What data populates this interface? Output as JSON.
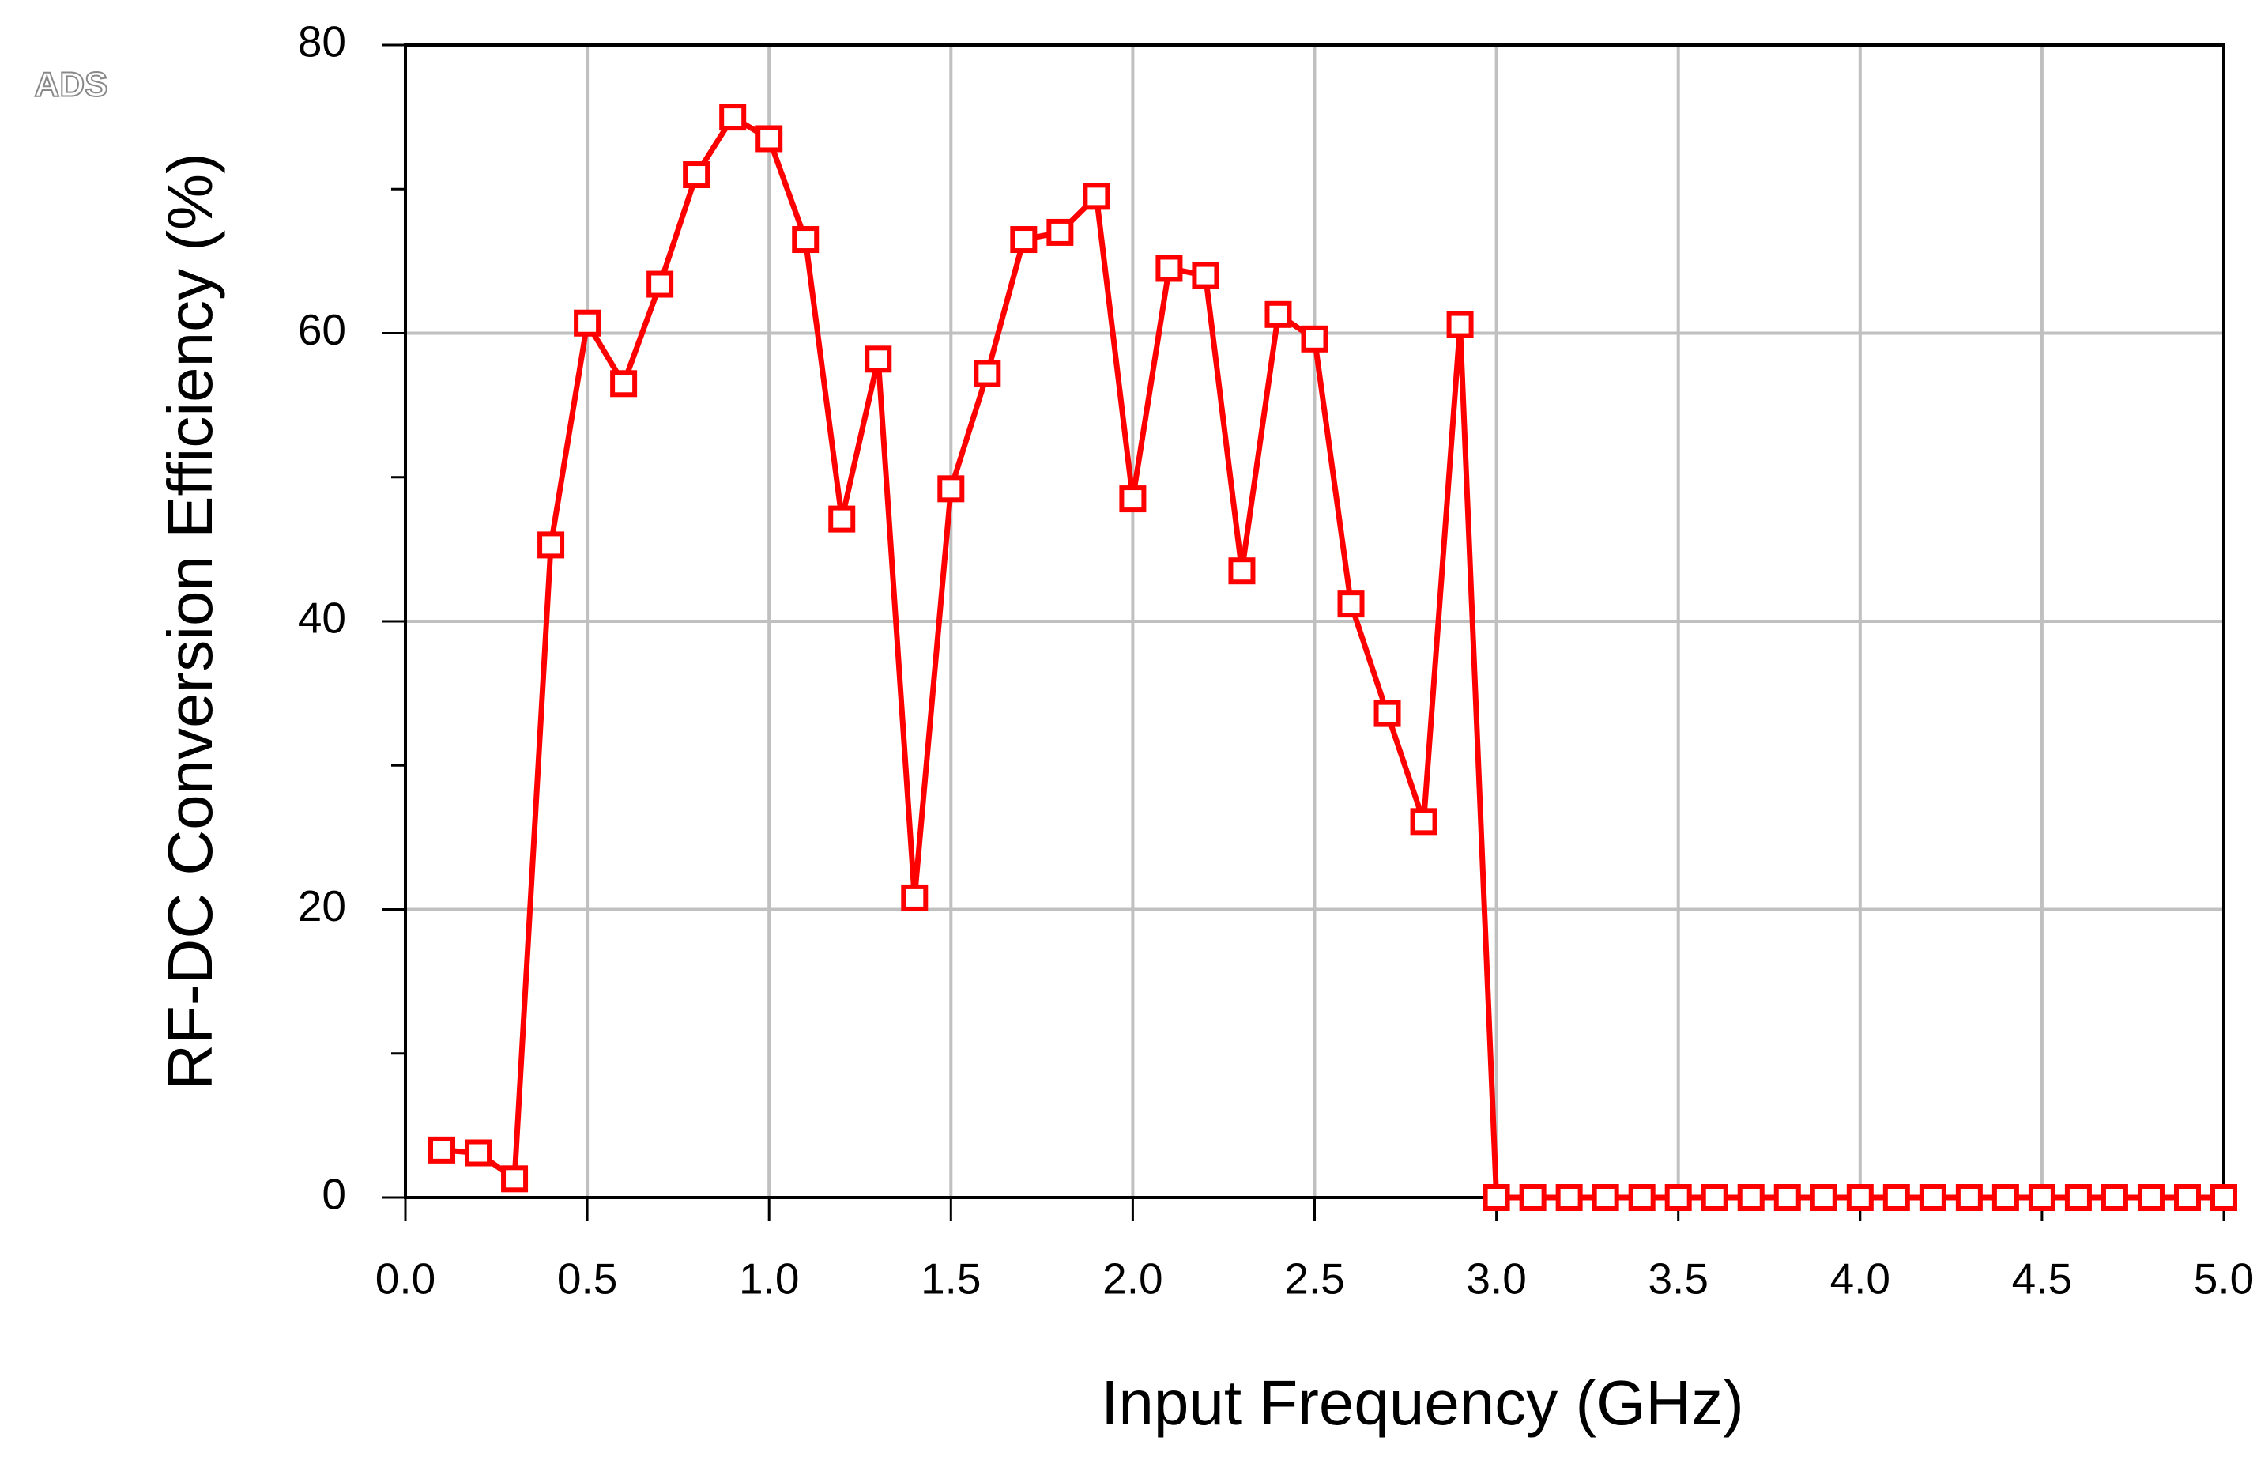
{
  "chart_data": {
    "type": "line",
    "watermark": "ADS",
    "xlabel": "Input Frequency (GHz)",
    "ylabel": "RF-DC Conversion Efficiency (%)",
    "x": [
      0.1,
      0.2,
      0.3,
      0.4,
      0.5,
      0.6,
      0.7,
      0.8,
      0.9,
      1.0,
      1.1,
      1.2,
      1.3,
      1.4,
      1.5,
      1.6,
      1.7,
      1.8,
      1.9,
      2.0,
      2.1,
      2.2,
      2.3,
      2.4,
      2.5,
      2.6,
      2.7,
      2.8,
      2.9,
      3.0,
      3.1,
      3.2,
      3.3,
      3.4,
      3.5,
      3.6,
      3.7,
      3.8,
      3.9,
      4.0,
      4.1,
      4.2,
      4.3,
      4.4,
      4.5,
      4.6,
      4.7,
      4.8,
      4.9,
      5.0
    ],
    "series": [
      {
        "color": "#ff0000",
        "marker": "square",
        "values": [
          3.3,
          3.1,
          1.3,
          45.3,
          60.7,
          56.5,
          63.4,
          71.0,
          75.0,
          73.5,
          66.5,
          47.1,
          58.2,
          20.8,
          49.2,
          57.2,
          66.5,
          67.0,
          69.5,
          48.5,
          64.5,
          64.0,
          43.5,
          61.3,
          59.6,
          41.2,
          33.6,
          26.1,
          60.6,
          0,
          0,
          0,
          0,
          0,
          0,
          0,
          0,
          0,
          0,
          0,
          0,
          0,
          0,
          0,
          0,
          0,
          0,
          0,
          0,
          0
        ]
      }
    ],
    "xlim": [
      0,
      5.0
    ],
    "ylim": [
      0,
      80
    ],
    "xticks": [
      {
        "value": 0,
        "label": "0.0"
      },
      0.5,
      {
        "value": 1,
        "label": "1.0"
      },
      1.5,
      {
        "value": 2,
        "label": "2.0"
      },
      2.5,
      {
        "value": 3,
        "label": "3.0"
      },
      3.5,
      {
        "value": 4,
        "label": "4.0"
      },
      4.5,
      {
        "value": 5,
        "label": "5.0"
      }
    ],
    "yticks": [
      0,
      20,
      40,
      60,
      80
    ],
    "yminorticks": [
      10,
      30,
      50,
      70
    ],
    "grid": true
  }
}
